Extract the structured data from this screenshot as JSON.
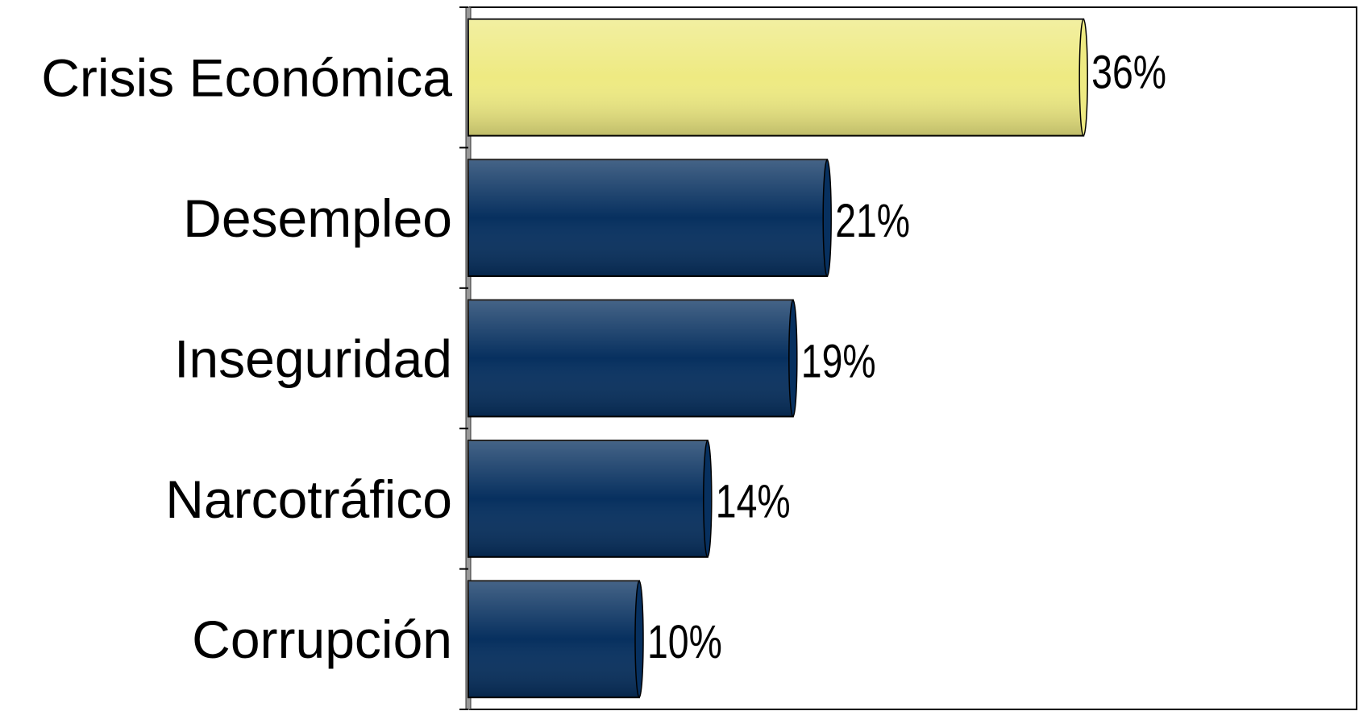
{
  "chart_data": {
    "type": "bar",
    "orientation": "horizontal",
    "categories": [
      "Crisis Económica",
      "Desempleo",
      "Inseguridad",
      "Narcotráfico",
      "Corrupción"
    ],
    "values": [
      36,
      21,
      19,
      14,
      10
    ],
    "value_labels": [
      "36%",
      "21%",
      "19%",
      "14%",
      "10%"
    ],
    "colors": [
      "#eeea82",
      "#07305f",
      "#07305f",
      "#07305f",
      "#07305f"
    ]
  }
}
